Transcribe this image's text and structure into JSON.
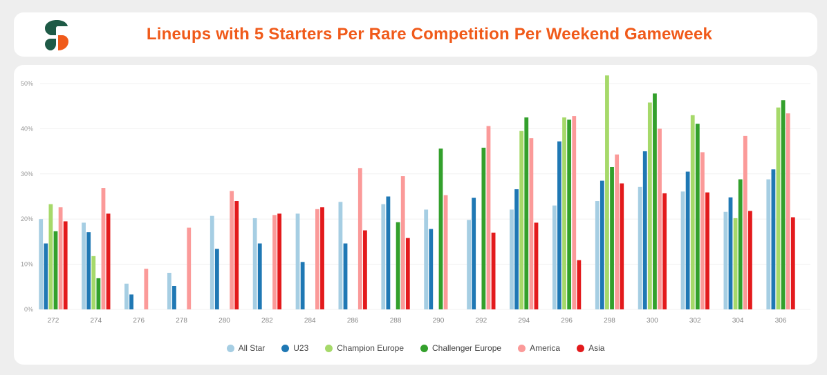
{
  "header": {
    "title": "Lineups with 5 Starters Per Rare Competition Per Weekend Gameweek"
  },
  "colors": {
    "title": "#f05a1a",
    "logo_green": "#1e5a46",
    "logo_orange": "#f05a1a"
  },
  "chart_data": {
    "type": "bar",
    "title": "Lineups with 5 Starters Per Rare Competition Per Weekend Gameweek",
    "xlabel": "",
    "ylabel": "",
    "ylim": [
      0,
      50
    ],
    "yticks": [
      "0%",
      "10%",
      "20%",
      "30%",
      "40%",
      "50%"
    ],
    "grid": true,
    "legend": "bottom",
    "categories": [
      "272",
      "274",
      "276",
      "278",
      "280",
      "282",
      "284",
      "286",
      "288",
      "290",
      "292",
      "294",
      "296",
      "298",
      "300",
      "302",
      "304",
      "306"
    ],
    "series": [
      {
        "name": "All Star",
        "color": "#a6cee3",
        "values": [
          20.0,
          19.2,
          5.7,
          8.1,
          20.7,
          20.2,
          21.2,
          23.8,
          23.3,
          22.1,
          19.8,
          22.1,
          23.0,
          24.0,
          27.1,
          26.1,
          21.6,
          28.8
        ]
      },
      {
        "name": "U23",
        "color": "#1f78b4",
        "values": [
          14.6,
          17.1,
          3.3,
          5.2,
          13.4,
          14.6,
          10.5,
          14.6,
          25.0,
          17.8,
          24.7,
          26.6,
          37.2,
          28.5,
          35.0,
          30.5,
          24.8,
          31.0
        ]
      },
      {
        "name": "Champion Europe",
        "color": "#a6d96a",
        "values": [
          23.3,
          11.8,
          null,
          null,
          null,
          null,
          null,
          null,
          null,
          null,
          null,
          39.5,
          42.5,
          51.8,
          45.8,
          43.0,
          20.2,
          44.7
        ]
      },
      {
        "name": "Challenger Europe",
        "color": "#33a02c",
        "values": [
          17.3,
          6.9,
          null,
          null,
          null,
          null,
          null,
          null,
          19.3,
          35.6,
          35.8,
          42.5,
          42.0,
          31.5,
          47.8,
          41.1,
          28.8,
          46.3
        ]
      },
      {
        "name": "America",
        "color": "#fb9a99",
        "values": [
          22.6,
          26.9,
          9.0,
          18.1,
          26.2,
          20.9,
          22.2,
          31.3,
          29.5,
          25.3,
          40.6,
          37.9,
          42.8,
          34.3,
          40.0,
          34.8,
          38.4,
          43.4
        ]
      },
      {
        "name": "Asia",
        "color": "#e31a1c",
        "values": [
          19.5,
          21.2,
          null,
          null,
          24.0,
          21.2,
          22.6,
          17.5,
          15.8,
          null,
          17.0,
          19.2,
          10.9,
          27.9,
          25.7,
          25.9,
          21.8,
          20.4
        ]
      }
    ]
  }
}
